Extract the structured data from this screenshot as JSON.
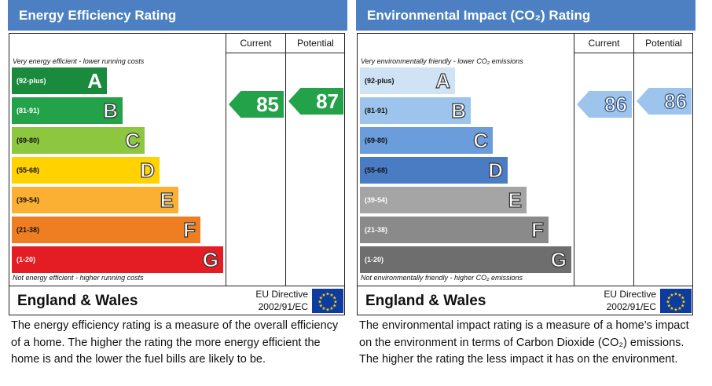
{
  "energy_efficiency": {
    "title": "Energy Efficiency Rating",
    "col_current": "Current",
    "col_potential": "Potential",
    "note_top": "Very energy efficient - lower running costs",
    "note_bottom": "Not energy efficient - higher running costs",
    "bands": [
      {
        "range": "(92-plus)",
        "letter": "A",
        "color": "#1a8a3c"
      },
      {
        "range": "(81-91)",
        "letter": "B",
        "color": "#23a24a"
      },
      {
        "range": "(69-80)",
        "letter": "C",
        "color": "#8dc63f"
      },
      {
        "range": "(55-68)",
        "letter": "D",
        "color": "#ffd200"
      },
      {
        "range": "(39-54)",
        "letter": "E",
        "color": "#fbb034"
      },
      {
        "range": "(21-38)",
        "letter": "F",
        "color": "#ef7d22"
      },
      {
        "range": "(1-20)",
        "letter": "G",
        "color": "#e31d23"
      }
    ],
    "current": {
      "value": "85",
      "band": "B",
      "color": "#23a24a"
    },
    "potential": {
      "value": "87",
      "band": "B",
      "color": "#23a24a"
    },
    "region": "England & Wales",
    "directive_line1": "EU Directive",
    "directive_line2": "2002/91/EC",
    "description": "The energy efficiency rating is a measure of the overall efficiency of a home. The higher the rating the more energy efficient the home is and the lower the fuel bills are likely to be."
  },
  "environmental_impact": {
    "title": "Environmental Impact (CO₂) Rating",
    "col_current": "Current",
    "col_potential": "Potential",
    "note_top": "Very environmentally friendly - lower CO₂ emissions",
    "note_bottom": "Not environmentally friendly - higher CO₂ emissions",
    "bands": [
      {
        "range": "(92-plus)",
        "letter": "A",
        "color": "#cfe3f5"
      },
      {
        "range": "(81-91)",
        "letter": "B",
        "color": "#9cc4ec"
      },
      {
        "range": "(69-80)",
        "letter": "C",
        "color": "#6b9ddc"
      },
      {
        "range": "(55-68)",
        "letter": "D",
        "color": "#4a7cc4"
      },
      {
        "range": "(39-54)",
        "letter": "E",
        "color": "#a5a5a5"
      },
      {
        "range": "(21-38)",
        "letter": "F",
        "color": "#8a8a8a"
      },
      {
        "range": "(1-20)",
        "letter": "G",
        "color": "#6e6e6e"
      }
    ],
    "current": {
      "value": "86",
      "band": "B",
      "color": "#9cc4ec"
    },
    "potential": {
      "value": "86",
      "band": "B",
      "color": "#9cc4ec"
    },
    "region": "England & Wales",
    "directive_line1": "EU Directive",
    "directive_line2": "2002/91/EC",
    "description": "The environmental impact rating is a measure of a home’s impact on the environment in terms of Carbon Dioxide (CO₂) emissions. The higher the rating the less impact it has on the environment."
  },
  "chart_data": [
    {
      "type": "bar",
      "title": "Energy Efficiency Rating",
      "categories": [
        "(92-plus)",
        "(81-91)",
        "(69-80)",
        "(55-68)",
        "(39-54)",
        "(21-38)",
        "(1-20)"
      ],
      "letters": [
        "A",
        "B",
        "C",
        "D",
        "E",
        "F",
        "G"
      ],
      "current": 85,
      "potential": 87
    },
    {
      "type": "bar",
      "title": "Environmental Impact (CO₂) Rating",
      "categories": [
        "(92-plus)",
        "(81-91)",
        "(69-80)",
        "(55-68)",
        "(39-54)",
        "(21-38)",
        "(1-20)"
      ],
      "letters": [
        "A",
        "B",
        "C",
        "D",
        "E",
        "F",
        "G"
      ],
      "current": 86,
      "potential": 86
    }
  ]
}
